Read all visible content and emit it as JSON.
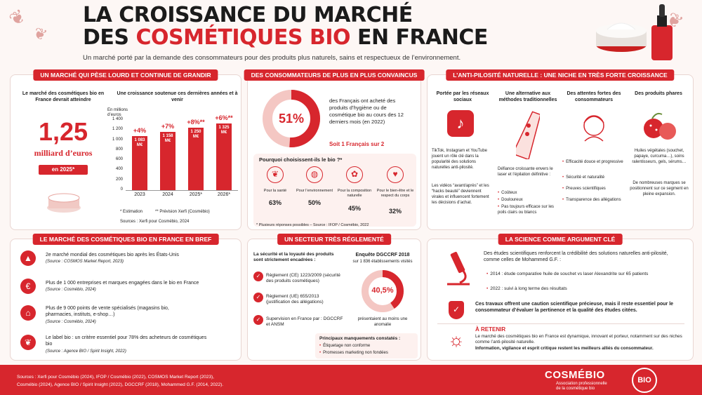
{
  "header": {
    "title_line1": "LA CROISSANCE DU MARCHÉ",
    "title_line2_a": "DES ",
    "title_line2_b": "COSMÉTIQUES BIO",
    "title_line2_c": " EN FRANCE",
    "subtitle": "Un marché porté par la demande des consommateurs pour des produits plus naturels, sains et respectueux de l’environnement."
  },
  "market": {
    "heading": "UN MARCHÉ QUI PÈSE LOURD ET CONTINUE DE GRANDIR",
    "left_intro": "Le marché des cosmétiques bio en France devrait atteindre",
    "big_value": "1,25",
    "big_unit": "milliard d’euros",
    "badge": "en 2025*",
    "chart_title": "Une croissance soutenue ces dernières années et à venir",
    "chart_ylabel": "En millions d’euros",
    "yticks": [
      "1 400",
      "1 200",
      "1 000",
      "800",
      "600",
      "400",
      "200",
      "0"
    ],
    "note_estimation": "* Estimation",
    "note_prevision": "** Prévision Xerfi (Cosmébio)",
    "source": "Sources : Xerfi pour Cosmébio, 2024"
  },
  "chart_data": {
    "type": "bar",
    "categories": [
      "2023",
      "2024",
      "2025*",
      "2026*"
    ],
    "values": [
      1083,
      1158,
      1250,
      1325
    ],
    "value_labels": [
      "1 083 M€",
      "1 158 M€",
      "1 250 M€",
      "1 325 M€"
    ],
    "growth_labels": [
      "+4%",
      "+7%",
      "+8%**",
      "+6%**"
    ],
    "ylabel": "En millions d’euros",
    "ylim": [
      0,
      1400
    ]
  },
  "consumers": {
    "heading": "DES CONSOMMATEURS DE PLUS EN PLUS CONVAINCUS",
    "percent": "51%",
    "percent_value": 51,
    "text": "des Français ont acheté des produits d’hygiène ou de cosmétique bio au cours des 12 derniers mois (en 2022)",
    "highlight": "Soit 1 Français sur 2",
    "why_title": "Pourquoi choisissent-ils le bio ?*",
    "reasons": [
      {
        "label": "Pour la santé",
        "value": "63%"
      },
      {
        "label": "Pour l’environnement",
        "value": "50%"
      },
      {
        "label": "Pour la composition naturelle",
        "value": "45%"
      },
      {
        "label": "Pour le bien-être et le respect du corps",
        "value": "32%"
      }
    ],
    "footnote": "* Plusieurs réponses possibles – Source : IFOP / Cosmébio, 2022"
  },
  "antipilo": {
    "heading": "L’ANTI-PILOSITÉ NATURELLE : UNE NICHE EN TRÈS FORTE CROISSANCE",
    "col1_title": "Portée par les réseaux sociaux",
    "col1_text1": "TikTok, Instagram et YouTube jouent un rôle clé dans la popularité des solutions naturelles anti-pilosité.",
    "col1_text2": "Les vidéos “avant/après” et les “hacks beauté” deviennent virales et influencent fortement les décisions d’achat.",
    "col2_title": "Une alternative aux méthodes traditionnelles",
    "col2_text": "Défiance croissante envers le laser et l’épilation définitive :",
    "col2_bullets": [
      "Coûteux",
      "Douloureux",
      "Pas toujours efficace sur les poils clairs ou blancs"
    ],
    "col3_title": "Des attentes fortes des consommateurs",
    "col3_bullets": [
      "Efficacité douce et progressive",
      "Sécurité et naturalité",
      "Preuves scientifiques",
      "Transparence des allégations"
    ],
    "col4_title": "Des produits phares",
    "col4_text1": "Huiles végétales (souchet, papaye, curcuma…), soins ralentisseurs, gels, sérums…",
    "col4_text2": "De nombreuses marques se positionnent sur ce segment en pleine expansion."
  },
  "brief": {
    "heading": "LE MARCHÉ DES COSMÉTIQUES BIO EN FRANCE EN BREF",
    "items": [
      {
        "text": "2e marché mondial des cosmétiques bio après les États-Unis",
        "source": "(Source : COSMOS Market Report, 2023)"
      },
      {
        "text": "Plus de 1 000 entreprises et marques engagées dans le bio en France",
        "source": "(Source : Cosmébio, 2024)"
      },
      {
        "text": "Plus de 9 000 points de vente spécialisés (magasins bio, pharmacies, instituts, e-shop…)",
        "source": "(Source : Cosmébio, 2024)"
      },
      {
        "text": "Le label bio : un critère essentiel pour 78% des acheteurs de cosmétiques bio",
        "source": "(Source : Agence BIO / Spirit Insight, 2022)"
      }
    ]
  },
  "regulated": {
    "heading": "UN SECTEUR TRÈS RÉGLEMENTÉ",
    "intro": "La sécurité et la loyauté des produits sont strictement encadrées :",
    "items": [
      "Règlement (CE) 1223/2009 (sécurité des produits cosmétiques)",
      "Règlement (UE) 655/2013 (justification des allégations)",
      "Supervision en France par : DGCCRF et ANSM"
    ],
    "survey_title": "Enquête DGCCRF 2018",
    "survey_sub": "sur 1 836 établissements visités",
    "survey_percent": "40,5%",
    "survey_value": 40.5,
    "survey_text": "présentaient au moins une anomalie",
    "issues_title": "Principaux manquements constatés :",
    "issues": [
      "Étiquetage non conforme",
      "Promesses marketing non fondées"
    ]
  },
  "science": {
    "heading": "LA SCIENCE COMME ARGUMENT CLÉ",
    "intro": "Des études scientifiques renforcent la crédibilité des solutions naturelles anti-pilosité, comme celles de Mohammed G.F. :",
    "studies": [
      "2014 : étude comparative huile de souchet vs laser Alexandrite sur 65 patients",
      "2022 : suivi à long terme des résultats"
    ],
    "caution": "Ces travaux offrent une caution scientifique précieuse, mais il reste essentiel pour le consommateur d’évaluer la pertinence et la qualité des études citées.",
    "retain_title": "À RETENIR",
    "retain_text": "Le marché des cosmétiques bio en France est dynamique, innovant et porteur, notamment sur des niches comme l’anti-pilosité naturelle.",
    "retain_bold": "Information, vigilance et esprit critique restent les meilleurs alliés du consommateur."
  },
  "footer": {
    "sources_line1": "Sources : Xerfi pour Cosmébio (2024), IFOP / Cosmébio (2022), COSMOS Market Report (2023),",
    "sources_line2": "Cosmébio (2024), Agence BIO / Spirit Insight (2022), DGCCRF (2018), Mohammed G.F. (2014, 2022).",
    "brand": "COSMÉBIO",
    "brand_sub1": "Association professionnelle",
    "brand_sub2": "de la cosmétique bio",
    "badge": "BIO"
  },
  "colors": {
    "accent": "#d7262d",
    "background": "#fdf7f5"
  }
}
